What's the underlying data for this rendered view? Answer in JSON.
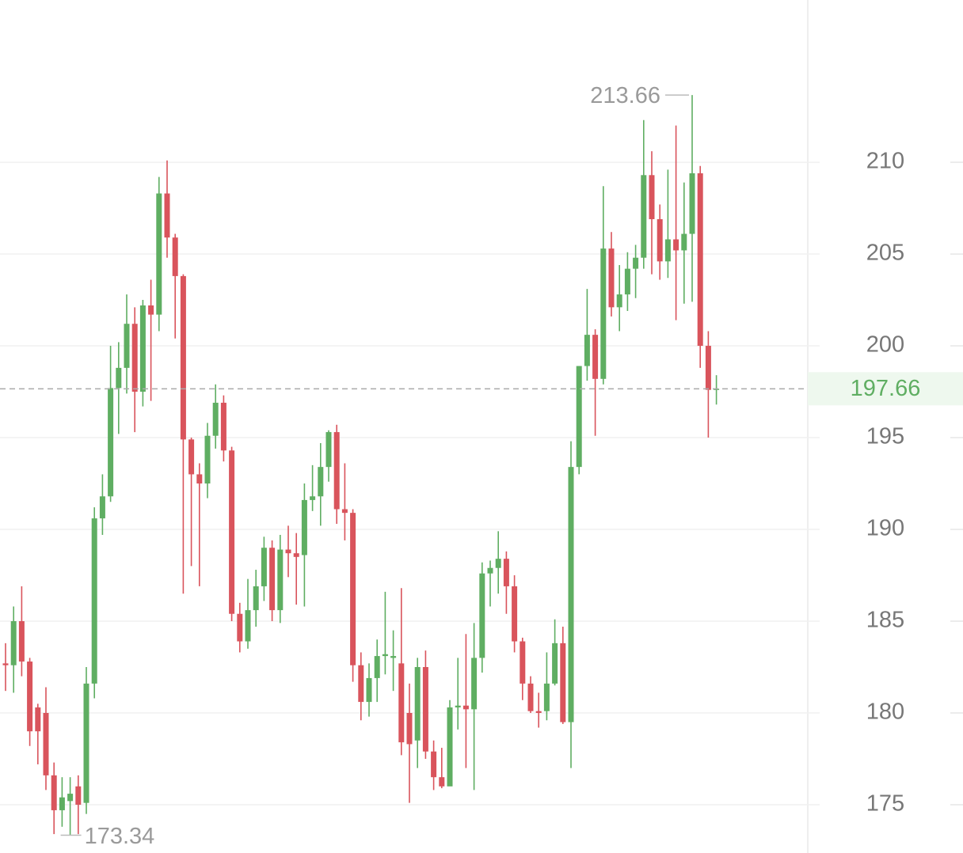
{
  "chart_data": {
    "type": "candlestick",
    "up_color": "#5fae62",
    "down_color": "#d9545c",
    "ylim": [
      172.37,
      218.84
    ],
    "yticks": [
      175,
      180,
      185,
      190,
      195,
      200,
      205,
      210
    ],
    "grid": true,
    "open": [
      182.7,
      182.6,
      185.0,
      182.8,
      180.3,
      180.0,
      176.6,
      174.7,
      175.2,
      176.0,
      175.1,
      181.6,
      190.6,
      191.8,
      197.7,
      198.8,
      201.2,
      197.5,
      202.2,
      201.7,
      208.3,
      205.9,
      203.8,
      194.9,
      193.0,
      192.5,
      195.1,
      196.9,
      194.3,
      185.4,
      183.9,
      185.6,
      186.9,
      189.0,
      185.6,
      188.9,
      188.7,
      188.6,
      191.6,
      191.8,
      193.4,
      195.3,
      191.1,
      190.9,
      182.6,
      180.6,
      181.9,
      183.1,
      183.0,
      182.7,
      180.0,
      178.5,
      182.5,
      177.9,
      176.5,
      176.0,
      180.3,
      180.4,
      180.2,
      183.0,
      187.6,
      187.9,
      188.4,
      186.9,
      183.9,
      181.6,
      180.1,
      180.1,
      181.6,
      183.8,
      179.5,
      193.4,
      198.9,
      200.6,
      198.2,
      205.3,
      202.1,
      202.8,
      204.2,
      204.8,
      209.3,
      206.9,
      204.6,
      205.8,
      205.2,
      206.1,
      209.4,
      200.0,
      197.6
    ],
    "high": [
      183.8,
      185.8,
      186.9,
      183.0,
      180.5,
      181.4,
      177.3,
      176.5,
      176.5,
      176.6,
      182.5,
      191.2,
      193.0,
      200.0,
      200.2,
      202.8,
      202.1,
      202.5,
      203.6,
      209.2,
      210.1,
      206.1,
      203.9,
      195.0,
      193.6,
      195.8,
      197.9,
      197.3,
      194.5,
      186.0,
      187.3,
      187.8,
      189.6,
      189.4,
      189.7,
      190.2,
      189.8,
      192.5,
      193.5,
      194.7,
      195.4,
      195.7,
      193.6,
      191.1,
      183.3,
      182.7,
      184.0,
      186.6,
      184.5,
      186.8,
      181.6,
      183.0,
      183.4,
      178.5,
      178.1,
      180.7,
      183.0,
      184.3,
      184.9,
      188.2,
      188.3,
      189.9,
      188.8,
      187.5,
      184.1,
      182.0,
      181.1,
      183.3,
      185.1,
      184.7,
      194.8,
      198.9,
      203.1,
      200.9,
      208.7,
      206.2,
      204.4,
      205.1,
      205.5,
      212.3,
      210.6,
      207.7,
      209.6,
      212.0,
      208.9,
      213.66,
      209.8,
      200.8,
      198.4
    ],
    "low": [
      181.2,
      181.1,
      182.0,
      178.2,
      177.2,
      175.8,
      173.4,
      173.8,
      173.34,
      173.4,
      174.5,
      180.8,
      189.7,
      191.5,
      195.2,
      197.4,
      195.3,
      196.7,
      197.0,
      200.8,
      204.8,
      200.4,
      186.5,
      188.0,
      186.9,
      191.7,
      194.4,
      193.7,
      185.0,
      183.3,
      183.5,
      184.7,
      186.1,
      185.0,
      184.9,
      187.4,
      185.9,
      185.8,
      191.0,
      190.2,
      192.6,
      190.3,
      189.4,
      181.7,
      179.6,
      179.8,
      180.6,
      182.1,
      181.2,
      177.7,
      175.1,
      177.0,
      177.5,
      175.8,
      175.9,
      176.4,
      179.1,
      177.0,
      175.8,
      182.2,
      185.8,
      186.5,
      185.4,
      183.3,
      180.7,
      180.0,
      179.2,
      179.6,
      181.5,
      179.4,
      177.0,
      193.0,
      198.1,
      195.1,
      197.9,
      201.6,
      200.8,
      201.9,
      202.6,
      204.2,
      203.9,
      203.6,
      203.7,
      201.4,
      202.3,
      202.4,
      198.8,
      195.0,
      196.8
    ],
    "close": [
      182.6,
      185.0,
      182.8,
      179.0,
      179.0,
      176.6,
      174.7,
      175.4,
      175.6,
      175.0,
      181.6,
      190.6,
      191.8,
      197.7,
      198.8,
      201.2,
      197.5,
      202.2,
      201.7,
      208.3,
      205.9,
      203.8,
      194.9,
      193.0,
      192.5,
      195.1,
      196.9,
      194.3,
      185.4,
      183.9,
      185.6,
      186.9,
      189.0,
      185.6,
      188.9,
      188.7,
      188.5,
      191.6,
      191.8,
      193.4,
      195.3,
      191.1,
      190.9,
      182.6,
      180.6,
      181.9,
      183.1,
      183.2,
      183.1,
      178.4,
      178.3,
      182.5,
      177.9,
      176.5,
      176.0,
      180.3,
      180.4,
      180.2,
      183.0,
      187.6,
      187.9,
      188.4,
      186.9,
      183.9,
      181.6,
      180.1,
      180.0,
      181.6,
      183.8,
      179.5,
      193.4,
      198.9,
      200.6,
      198.2,
      205.3,
      202.1,
      202.8,
      204.2,
      204.8,
      209.3,
      206.9,
      204.6,
      205.8,
      205.2,
      206.1,
      209.4,
      200.0,
      197.6,
      197.66
    ]
  }
}
